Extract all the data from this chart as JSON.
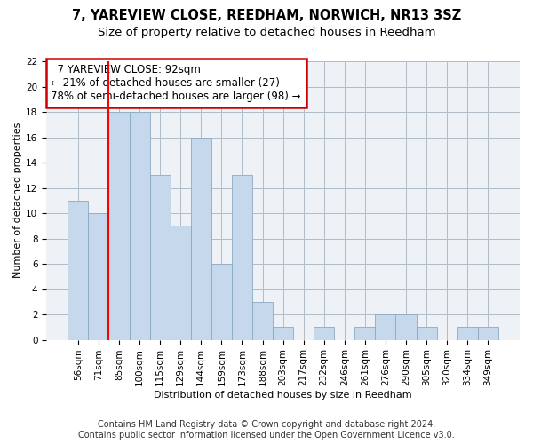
{
  "title1": "7, YAREVIEW CLOSE, REEDHAM, NORWICH, NR13 3SZ",
  "title2": "Size of property relative to detached houses in Reedham",
  "xlabel": "Distribution of detached houses by size in Reedham",
  "ylabel": "Number of detached properties",
  "footer1": "Contains HM Land Registry data © Crown copyright and database right 2024.",
  "footer2": "Contains public sector information licensed under the Open Government Licence v3.0.",
  "annotation_line1": "  7 YAREVIEW CLOSE: 92sqm  ",
  "annotation_line2": "← 21% of detached houses are smaller (27)",
  "annotation_line3": "78% of semi-detached houses are larger (98) →",
  "bar_color": "#c6d9ec",
  "bar_edgecolor": "#8aaabf",
  "marker_color": "red",
  "categories": [
    "56sqm",
    "71sqm",
    "85sqm",
    "100sqm",
    "115sqm",
    "129sqm",
    "144sqm",
    "159sqm",
    "173sqm",
    "188sqm",
    "203sqm",
    "217sqm",
    "232sqm",
    "246sqm",
    "261sqm",
    "276sqm",
    "290sqm",
    "305sqm",
    "320sqm",
    "334sqm",
    "349sqm"
  ],
  "values": [
    11,
    10,
    18,
    18,
    13,
    9,
    16,
    6,
    13,
    3,
    1,
    0,
    1,
    0,
    1,
    2,
    2,
    1,
    0,
    1,
    1
  ],
  "marker_bar_index": 2,
  "ylim": [
    0,
    22
  ],
  "yticks": [
    0,
    2,
    4,
    6,
    8,
    10,
    12,
    14,
    16,
    18,
    20,
    22
  ],
  "background_color": "#ffffff",
  "plot_bg_color": "#eef2f7",
  "annotation_box_facecolor": "#ffffff",
  "annotation_box_edgecolor": "#cc0000",
  "grid_color": "#b0bcc8",
  "title1_fontsize": 10.5,
  "title2_fontsize": 9.5,
  "axis_fontsize": 8,
  "tick_fontsize": 7.5,
  "footer_fontsize": 7,
  "annotation_fontsize": 8.5
}
